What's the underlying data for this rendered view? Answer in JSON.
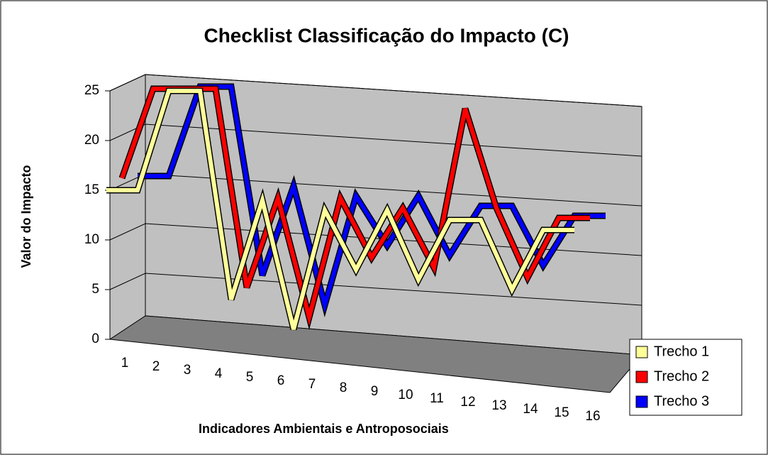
{
  "chart_data": {
    "type": "line3d",
    "title": "Checklist Classificação do Impacto (C)",
    "x_label": "Indicadores Ambientais e Antroposociais",
    "y_label": "Valor do Impacto",
    "categories": [
      "1",
      "2",
      "3",
      "4",
      "5",
      "6",
      "7",
      "8",
      "9",
      "10",
      "11",
      "12",
      "13",
      "14",
      "15",
      "16"
    ],
    "series": [
      {
        "name": "Trecho 1",
        "color": "#ffff99",
        "values": [
          15,
          15,
          25,
          25,
          4,
          14,
          1,
          13,
          7,
          13,
          6,
          12,
          12,
          5,
          11,
          11
        ]
      },
      {
        "name": "Trecho 2",
        "color": "#ff0000",
        "values": [
          16,
          25,
          25,
          25,
          5,
          14,
          2,
          14,
          8,
          13,
          7,
          23,
          13,
          6,
          12,
          12
        ]
      },
      {
        "name": "Trecho 3",
        "color": "#0000ff",
        "values": [
          16,
          16,
          25,
          25,
          6,
          15,
          3,
          14,
          9,
          14,
          8,
          13,
          13,
          7,
          12,
          12
        ]
      }
    ],
    "ylim": [
      0,
      25
    ],
    "yticks": [
      0,
      5,
      10,
      15,
      20,
      25
    ],
    "grid": true,
    "legend": "right"
  }
}
